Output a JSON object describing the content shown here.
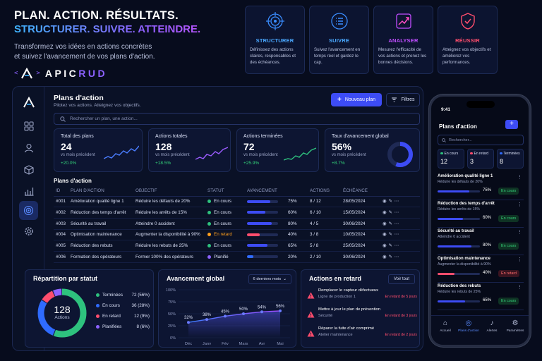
{
  "hero": {
    "line1": "PLAN. ACTION. RÉSULTATS.",
    "line2": "STRUCTURER. SUIVRE. ATTEINDRE.",
    "desc1": "Transformez vos idées en actions concrètes",
    "desc2": "et suivez l'avancement de vos plans d'action."
  },
  "brand": {
    "left": "<",
    "slash": "/",
    "right": ">",
    "name_a": "APIC",
    "name_b": "RUD"
  },
  "features": [
    {
      "title": "STRUCTURER",
      "desc": "Définissez des actions claires, responsables et des échéances.",
      "icon": "target-icon",
      "color": "#3a8dff"
    },
    {
      "title": "SUIVRE",
      "desc": "Suivez l'avancement en temps réel et gardez le cap.",
      "icon": "checklist-icon",
      "color": "#3a8dff"
    },
    {
      "title": "ANALYSER",
      "desc": "Mesurez l'efficacité de vos actions et prenez les bonnes décisions.",
      "icon": "chart-up-icon",
      "color": "#c04dff"
    },
    {
      "title": "RÉUSSIR",
      "desc": "Atteignez vos objectifs et améliorez vos performances.",
      "icon": "shield-check-icon",
      "color": "#ff4d6d"
    }
  ],
  "dashboard": {
    "title": "Plans d'action",
    "subtitle": "Pilotez vos actions. Atteignez vos objectifs.",
    "new_button": "Nouveau plan",
    "filter_button": "Filtres",
    "search_placeholder": "Rechercher un plan, une action...",
    "kpis": [
      {
        "label": "Total des plans",
        "value": "24",
        "sub": "vs mois précédent",
        "delta": "+20.0%",
        "color": "#4a7dff"
      },
      {
        "label": "Actions totales",
        "value": "128",
        "sub": "vs mois précédent",
        "delta": "+18.5%",
        "color": "#9b5cff"
      },
      {
        "label": "Actions terminées",
        "value": "72",
        "sub": "vs mois précédent",
        "delta": "+25.9%",
        "color": "#2ec27e"
      },
      {
        "label": "Taux d'avancement global",
        "value": "56%",
        "sub": "vs mois précédent",
        "delta": "+8.7%",
        "color": "#3d4cf5",
        "progress": 56
      }
    ],
    "table_title": "Plans d'action",
    "columns": [
      "ID",
      "PLAN D'ACTION",
      "OBJECTIF",
      "STATUT",
      "AVANCEMENT",
      "ACTIONS",
      "ÉCHÉANCE"
    ],
    "rows": [
      {
        "id": "#001",
        "plan": "Amélioration qualité ligne 1",
        "objective": "Réduire les défauts de 20%",
        "status": "En cours",
        "status_color": "#2ec27e",
        "progress": 75,
        "pct": "75%",
        "actions": "8 / 12",
        "due": "28/05/2024"
      },
      {
        "id": "#002",
        "plan": "Réduction des temps d'arrêt",
        "objective": "Réduire les arrêts de 15%",
        "status": "En cours",
        "status_color": "#2ec27e",
        "progress": 60,
        "pct": "60%",
        "actions": "6 / 10",
        "due": "15/05/2024"
      },
      {
        "id": "#003",
        "plan": "Sécurité au travail",
        "objective": "Atteindre 0 accident",
        "status": "En cours",
        "status_color": "#2ec27e",
        "progress": 80,
        "pct": "80%",
        "actions": "4 / 5",
        "due": "30/06/2024"
      },
      {
        "id": "#004",
        "plan": "Optimisation maintenance",
        "objective": "Augmenter la disponibilité à 90%",
        "status": "En retard",
        "status_color": "#ff9f1c",
        "progress": 40,
        "pct": "40%",
        "actions": "3 / 8",
        "due": "10/05/2024"
      },
      {
        "id": "#005",
        "plan": "Réduction des rebuts",
        "objective": "Réduire les rebuts de 25%",
        "status": "En cours",
        "status_color": "#2ec27e",
        "progress": 65,
        "pct": "65%",
        "actions": "5 / 8",
        "due": "25/05/2024"
      },
      {
        "id": "#006",
        "plan": "Formation des opérateurs",
        "objective": "Former 100% des opérateurs",
        "status": "Planifié",
        "status_color": "#8c62ff",
        "progress": 20,
        "pct": "20%",
        "actions": "2 / 10",
        "due": "30/06/2024"
      }
    ],
    "status_card": {
      "title": "Répartition par statut",
      "total": "128",
      "total_label": "Actions",
      "items": [
        {
          "label": "Terminées",
          "value": "72 (56%)",
          "color": "#2ec27e",
          "count": 72
        },
        {
          "label": "En cours",
          "value": "36 (28%)",
          "color": "#2f6bff",
          "count": 36
        },
        {
          "label": "En retard",
          "value": "12 (9%)",
          "color": "#ff4d6d",
          "count": 12
        },
        {
          "label": "Planifiées",
          "value": "8 (6%)",
          "color": "#8c62ff",
          "count": 8
        }
      ]
    },
    "progress_card": {
      "title": "Avancement global",
      "period": "6 derniers mois"
    },
    "late_card": {
      "title": "Actions en retard",
      "button": "Voir tout",
      "items": [
        {
          "title": "Remplacer le capteur défectueux",
          "sub": "Ligne de production 1",
          "delay": "En retard de 5 jours"
        },
        {
          "title": "Mettre à jour le plan de prévention",
          "sub": "Sécurité",
          "delay": "En retard de 3 jours"
        },
        {
          "title": "Réparer la fuite d'air comprimé",
          "sub": "Atelier maintenance",
          "delay": "En retard de 2 jours"
        }
      ]
    }
  },
  "chart_data": {
    "type": "line",
    "categories": [
      "Déc",
      "Janv",
      "Fév",
      "Mars",
      "Avr",
      "Mai"
    ],
    "values": [
      32,
      38,
      45,
      50,
      54,
      56
    ],
    "data_labels": [
      "32%",
      "38%",
      "45%",
      "50%",
      "54%",
      "56%"
    ],
    "y_ticks": [
      "100%",
      "75%",
      "50%",
      "25%",
      "0%"
    ],
    "ylim": [
      0,
      100
    ],
    "grid": true,
    "color": "#5a5cff"
  },
  "mobile": {
    "time": "9:41",
    "title": "Plans d'action",
    "search_placeholder": "Rechercher...",
    "stats": [
      {
        "label": "En cours",
        "value": "12",
        "color": "#2ec27e"
      },
      {
        "label": "En retard",
        "value": "3",
        "color": "#ff4d6d"
      },
      {
        "label": "Terminées",
        "value": "8",
        "color": "#2f6bff"
      }
    ],
    "items": [
      {
        "title": "Amélioration qualité ligne 1",
        "sub": "Réduire les défauts de 20%",
        "progress": 75,
        "pct": "75%",
        "status": "En cours",
        "late": false
      },
      {
        "title": "Réduction des temps d'arrêt",
        "sub": "Réduire les arrêts de 15%",
        "progress": 60,
        "pct": "60%",
        "status": "En cours",
        "late": false
      },
      {
        "title": "Sécurité au travail",
        "sub": "Atteindre 0 accident",
        "progress": 80,
        "pct": "80%",
        "status": "En cours",
        "late": false
      },
      {
        "title": "Optimisation maintenance",
        "sub": "Augmenter la disponibilité à 90%",
        "progress": 40,
        "pct": "40%",
        "status": "En retard",
        "late": true
      },
      {
        "title": "Réduction des rebuts",
        "sub": "Réduire les rebuts de 25%",
        "progress": 65,
        "pct": "65%",
        "status": "En cours",
        "late": false
      }
    ],
    "nav": [
      "Accueil",
      "Plans d'action",
      "Alertes",
      "Paramètres"
    ]
  }
}
